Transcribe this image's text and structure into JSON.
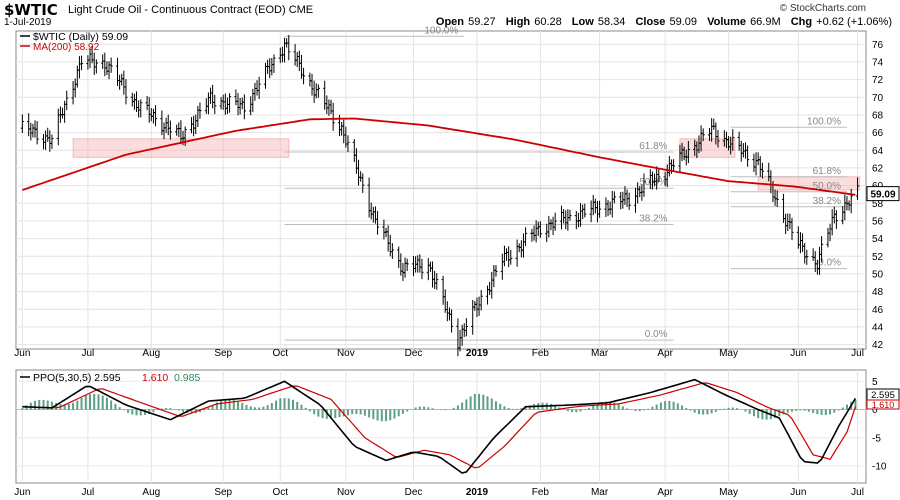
{
  "header": {
    "symbol": "$WTIC",
    "description": "Light Crude Oil - Continuous Contract (EOD) CME",
    "date": "1-Jul-2019",
    "brand": "© StockCharts.com",
    "open_label": "Open",
    "open": "59.27",
    "high_label": "High",
    "high": "60.28",
    "low_label": "Low",
    "low": "58.34",
    "close_label": "Close",
    "close": "59.09",
    "volume_label": "Volume",
    "volume": "66.9M",
    "chg_label": "Chg",
    "chg": "+0.62 (+1.06%)"
  },
  "chart_data": [
    {
      "type": "ohlc",
      "legend": [
        {
          "text": "$WTIC (Daily) 59.09",
          "color": "#000000"
        },
        {
          "text": "MA(200) 58.92",
          "color": "#cc0000"
        }
      ],
      "x_labels": [
        "Jun",
        "Jul",
        "Aug",
        "Sep",
        "Oct",
        "Nov",
        "Dec",
        "2019",
        "Feb",
        "Mar",
        "Apr",
        "May",
        "Jun",
        "Jul"
      ],
      "y_ticks": [
        42,
        44,
        46,
        48,
        50,
        52,
        54,
        56,
        58,
        60,
        62,
        64,
        66,
        68,
        70,
        72,
        74,
        76
      ],
      "ylim": [
        41.5,
        77.5
      ],
      "last_price_label": "59.09",
      "series": [
        {
          "name": "$WTIC",
          "x": [
            "2018-06-01",
            "2018-06-15",
            "2018-06-29",
            "2018-07-10",
            "2018-07-25",
            "2018-08-15",
            "2018-08-29",
            "2018-09-14",
            "2018-10-03",
            "2018-10-16",
            "2018-10-30",
            "2018-11-15",
            "2018-11-28",
            "2018-12-10",
            "2018-12-24",
            "2019-01-14",
            "2019-02-01",
            "2019-02-21",
            "2019-03-15",
            "2019-04-01",
            "2019-04-23",
            "2019-05-15",
            "2019-06-03",
            "2019-06-12",
            "2019-06-20",
            "2019-07-01"
          ],
          "close": [
            66.5,
            65.2,
            74.1,
            73.9,
            69.2,
            65.5,
            69.8,
            68.9,
            76.0,
            71.3,
            66.5,
            56.0,
            50.6,
            51.1,
            42.5,
            51.5,
            55.2,
            56.9,
            58.6,
            61.6,
            66.3,
            62.6,
            53.3,
            51.2,
            56.6,
            59.09
          ]
        },
        {
          "name": "MA(200)",
          "x": [
            "2018-06-01",
            "2018-07-20",
            "2018-09-10",
            "2018-10-15",
            "2018-11-05",
            "2018-12-10",
            "2019-01-20",
            "2019-03-01",
            "2019-04-01",
            "2019-05-01",
            "2019-06-01",
            "2019-07-01"
          ],
          "values": [
            59.5,
            63.5,
            66.2,
            67.5,
            67.6,
            66.8,
            65.2,
            63.2,
            61.8,
            60.5,
            59.9,
            58.92
          ]
        }
      ],
      "bands": [
        {
          "from": "2018-06-25",
          "to": "2018-10-05",
          "low": 63.2,
          "high": 65.3
        },
        {
          "from": "2019-04-08",
          "to": "2019-05-04",
          "low": 63.2,
          "high": 65.3
        },
        {
          "from": "2019-05-15",
          "to": "2019-07-02",
          "low": 59.5,
          "high": 61.0
        }
      ],
      "fib_levels": [
        {
          "label": "100.0%",
          "value": 76.9,
          "from": "2018-10-03",
          "to": "2018-12-27"
        },
        {
          "label": "61.8%",
          "value": 63.8,
          "from": "2018-10-03",
          "to": "2019-04-05"
        },
        {
          "label": "50.0%",
          "value": 59.7,
          "from": "2018-10-03",
          "to": "2019-04-05"
        },
        {
          "label": "38.2%",
          "value": 55.6,
          "from": "2018-10-03",
          "to": "2019-04-05"
        },
        {
          "label": "0.0%",
          "value": 42.5,
          "from": "2018-10-03",
          "to": "2019-04-05"
        },
        {
          "label": "100.0%",
          "value": 66.6,
          "from": "2019-05-02",
          "to": "2019-06-26"
        },
        {
          "label": "61.8%",
          "value": 61.0,
          "from": "2019-05-02",
          "to": "2019-06-26"
        },
        {
          "label": "50.0%",
          "value": 59.3,
          "from": "2019-05-02",
          "to": "2019-06-26"
        },
        {
          "label": "38.2%",
          "value": 57.6,
          "from": "2019-05-02",
          "to": "2019-06-26"
        },
        {
          "label": "0.0%",
          "value": 50.6,
          "from": "2019-05-02",
          "to": "2019-06-26"
        }
      ]
    },
    {
      "type": "line",
      "title": "PPO(5,30,5)",
      "legend": [
        {
          "text": "PPO(5,30,5) 2.595",
          "color": "#000000"
        },
        {
          "text": "1.610",
          "color": "#cc0000"
        },
        {
          "text": "0.985",
          "color": "#2e8b57"
        }
      ],
      "x_labels": [
        "Jun",
        "Jul",
        "Aug",
        "Sep",
        "Oct",
        "Nov",
        "Dec",
        "2019",
        "Feb",
        "Mar",
        "Apr",
        "May",
        "Jun",
        "Jul"
      ],
      "y_ticks": [
        5,
        0,
        -5,
        -10
      ],
      "ylim": [
        -13,
        7
      ],
      "value_labels": [
        "2.595",
        "1.610"
      ],
      "series": [
        {
          "name": "PPO",
          "x": [
            "2018-06-01",
            "2018-06-15",
            "2018-07-02",
            "2018-07-20",
            "2018-08-10",
            "2018-08-28",
            "2018-09-14",
            "2018-10-03",
            "2018-10-20",
            "2018-11-05",
            "2018-11-20",
            "2018-12-03",
            "2018-12-15",
            "2018-12-27",
            "2019-01-10",
            "2019-01-25",
            "2019-02-15",
            "2019-03-05",
            "2019-03-25",
            "2019-04-15",
            "2019-04-30",
            "2019-05-15",
            "2019-05-25",
            "2019-06-05",
            "2019-06-13",
            "2019-06-22",
            "2019-07-01"
          ],
          "values": [
            0.5,
            0.3,
            4.3,
            0.8,
            -1.8,
            1.5,
            2.0,
            5.0,
            0.8,
            -6.5,
            -9.0,
            -7.5,
            -8.3,
            -11.5,
            -5.0,
            0.5,
            0.8,
            1.2,
            3.0,
            5.3,
            2.5,
            0.0,
            -1.5,
            -9.2,
            -9.5,
            -3.0,
            2.595
          ]
        },
        {
          "name": "Signal",
          "x": [
            "2018-06-01",
            "2018-06-18",
            "2018-07-08",
            "2018-07-25",
            "2018-08-15",
            "2018-09-01",
            "2018-09-18",
            "2018-10-08",
            "2018-10-25",
            "2018-11-10",
            "2018-11-25",
            "2018-12-08",
            "2018-12-20",
            "2019-01-02",
            "2019-01-15",
            "2019-01-30",
            "2019-02-20",
            "2019-03-10",
            "2019-03-30",
            "2019-04-20",
            "2019-05-05",
            "2019-05-20",
            "2019-05-30",
            "2019-06-10",
            "2019-06-18",
            "2019-06-26",
            "2019-07-01"
          ],
          "values": [
            0.5,
            0.3,
            3.8,
            1.5,
            -1.3,
            1.0,
            1.8,
            4.3,
            1.8,
            -5.0,
            -8.5,
            -7.2,
            -8.0,
            -10.5,
            -6.5,
            -0.5,
            0.6,
            1.0,
            2.6,
            4.8,
            3.0,
            0.3,
            -1.0,
            -8.0,
            -8.8,
            -4.0,
            1.61
          ]
        }
      ],
      "histogram": {
        "x": [
          "2018-06-01",
          "2018-07-01",
          "2018-08-01",
          "2018-09-01",
          "2018-10-01",
          "2018-11-01",
          "2018-12-01",
          "2019-01-01",
          "2019-02-01",
          "2019-03-01",
          "2019-04-01",
          "2019-05-01",
          "2019-06-01",
          "2019-07-01"
        ],
        "values": [
          0.2,
          2.5,
          -1.0,
          0.8,
          1.5,
          -1.8,
          -0.8,
          2.0,
          0.3,
          0.5,
          0.7,
          -0.5,
          -1.2,
          0.985
        ]
      }
    }
  ]
}
